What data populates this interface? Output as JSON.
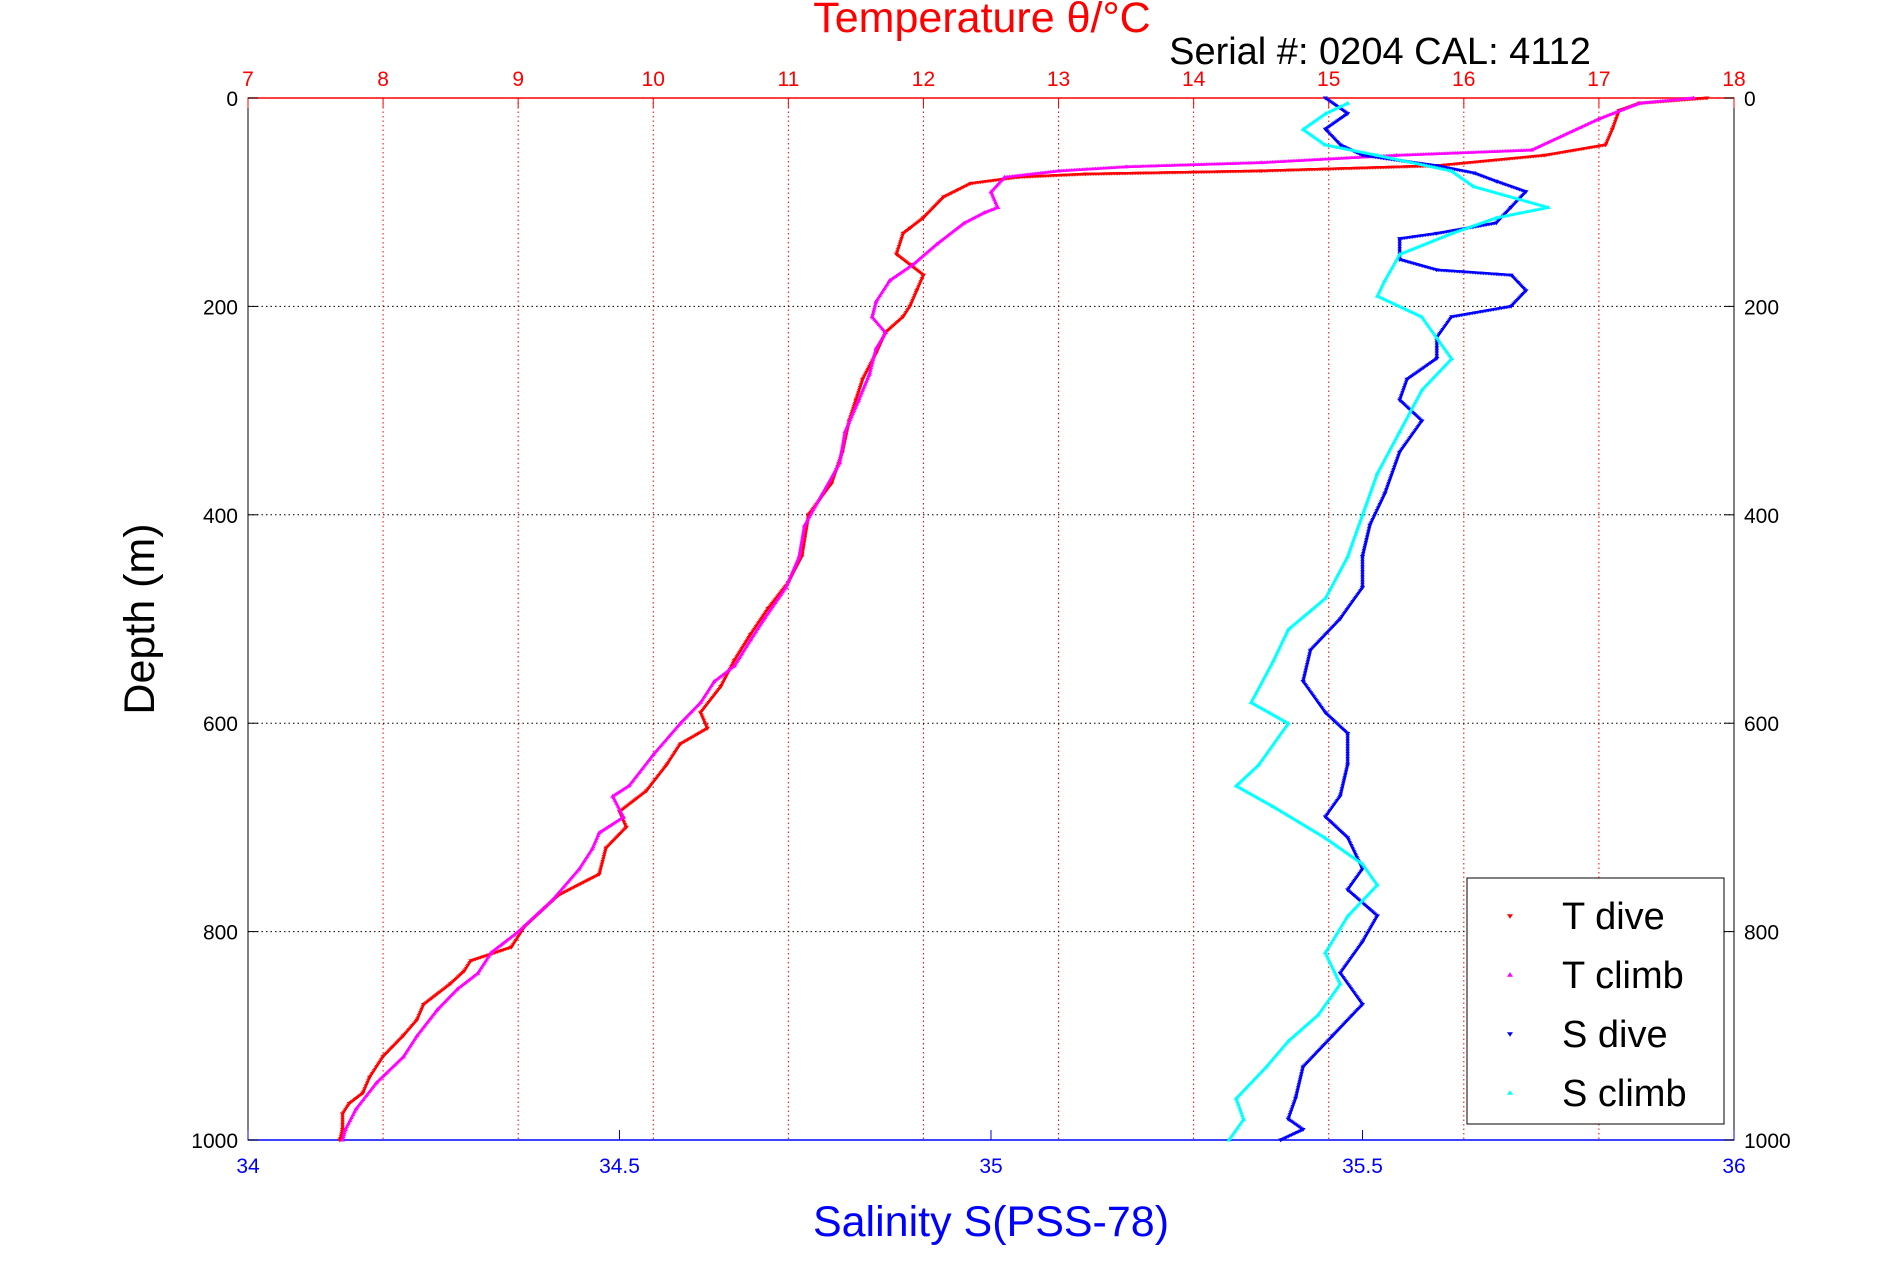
{
  "chart_data": {
    "type": "scatter",
    "title": "Temperature θ/°C",
    "subtitle": "Serial #: 0204  CAL: 4112",
    "ylabel": "Depth (m)",
    "xlabel": "Salinity S(PSS-78)",
    "y_axis": {
      "range": [
        0,
        1000
      ],
      "reversed": true,
      "ticks": [
        "0",
        "200",
        "400",
        "600",
        "800",
        "1000"
      ]
    },
    "temperature_axis": {
      "position": "top",
      "range": [
        7,
        18
      ],
      "ticks": [
        "7",
        "8",
        "9",
        "10",
        "11",
        "12",
        "13",
        "14",
        "15",
        "16",
        "17",
        "18"
      ],
      "color": "#ff0000"
    },
    "salinity_axis": {
      "position": "bottom",
      "range": [
        34,
        36
      ],
      "ticks": [
        "34",
        "34.5",
        "35",
        "35.5",
        "36"
      ],
      "color": "#0000ff"
    },
    "grid": true,
    "legend": {
      "placement": "bottom-right"
    },
    "series": [
      {
        "name": "T dive",
        "axis": "temperature",
        "color": "#ff0000",
        "marker": "triangle-down",
        "points": [
          [
            17.8,
            0
          ],
          [
            17.3,
            5
          ],
          [
            17.15,
            12
          ],
          [
            17.1,
            30
          ],
          [
            17.05,
            45
          ],
          [
            16.6,
            55
          ],
          [
            15.8,
            65
          ],
          [
            14.5,
            70
          ],
          [
            13.2,
            73
          ],
          [
            12.7,
            76
          ],
          [
            12.35,
            82
          ],
          [
            12.15,
            95
          ],
          [
            12.0,
            115
          ],
          [
            11.9,
            125
          ],
          [
            11.85,
            130
          ],
          [
            11.8,
            150
          ],
          [
            11.9,
            160
          ],
          [
            12.0,
            170
          ],
          [
            11.95,
            185
          ],
          [
            11.9,
            200
          ],
          [
            11.85,
            210
          ],
          [
            11.72,
            225
          ],
          [
            11.65,
            245
          ],
          [
            11.55,
            270
          ],
          [
            11.5,
            290
          ],
          [
            11.45,
            310
          ],
          [
            11.4,
            340
          ],
          [
            11.32,
            370
          ],
          [
            11.15,
            400
          ],
          [
            11.1,
            440
          ],
          [
            11.0,
            465
          ],
          [
            10.85,
            490
          ],
          [
            10.72,
            515
          ],
          [
            10.6,
            540
          ],
          [
            10.5,
            565
          ],
          [
            10.35,
            590
          ],
          [
            10.4,
            605
          ],
          [
            10.2,
            620
          ],
          [
            10.1,
            640
          ],
          [
            9.95,
            665
          ],
          [
            9.75,
            685
          ],
          [
            9.8,
            700
          ],
          [
            9.65,
            720
          ],
          [
            9.6,
            745
          ],
          [
            9.3,
            765
          ],
          [
            9.05,
            795
          ],
          [
            8.95,
            815
          ],
          [
            8.65,
            828
          ],
          [
            8.6,
            838
          ],
          [
            8.5,
            850
          ],
          [
            8.3,
            870
          ],
          [
            8.25,
            885
          ],
          [
            8.15,
            900
          ],
          [
            8.0,
            920
          ],
          [
            7.9,
            940
          ],
          [
            7.85,
            955
          ],
          [
            7.75,
            965
          ],
          [
            7.7,
            975
          ],
          [
            7.7,
            990
          ],
          [
            7.68,
            1000
          ]
        ]
      },
      {
        "name": "T climb",
        "axis": "temperature",
        "color": "#ff00ff",
        "marker": "triangle-up",
        "points": [
          [
            17.7,
            0
          ],
          [
            17.3,
            5
          ],
          [
            17.0,
            20
          ],
          [
            16.5,
            50
          ],
          [
            15.5,
            55
          ],
          [
            14.5,
            62
          ],
          [
            13.5,
            66
          ],
          [
            13.0,
            70
          ],
          [
            12.6,
            76
          ],
          [
            12.5,
            90
          ],
          [
            12.55,
            105
          ],
          [
            12.45,
            110
          ],
          [
            12.3,
            120
          ],
          [
            12.1,
            140
          ],
          [
            11.92,
            160
          ],
          [
            11.75,
            175
          ],
          [
            11.65,
            195
          ],
          [
            11.62,
            210
          ],
          [
            11.72,
            225
          ],
          [
            11.65,
            240
          ],
          [
            11.6,
            265
          ],
          [
            11.52,
            290
          ],
          [
            11.42,
            320
          ],
          [
            11.38,
            350
          ],
          [
            11.25,
            380
          ],
          [
            11.12,
            410
          ],
          [
            11.08,
            440
          ],
          [
            10.98,
            470
          ],
          [
            10.82,
            500
          ],
          [
            10.72,
            520
          ],
          [
            10.6,
            545
          ],
          [
            10.45,
            560
          ],
          [
            10.35,
            580
          ],
          [
            10.2,
            600
          ],
          [
            10.0,
            630
          ],
          [
            9.82,
            660
          ],
          [
            9.7,
            670
          ],
          [
            9.78,
            690
          ],
          [
            9.6,
            705
          ],
          [
            9.55,
            720
          ],
          [
            9.45,
            740
          ],
          [
            9.25,
            770
          ],
          [
            9.0,
            800
          ],
          [
            8.8,
            820
          ],
          [
            8.7,
            840
          ],
          [
            8.55,
            855
          ],
          [
            8.4,
            875
          ],
          [
            8.25,
            900
          ],
          [
            8.15,
            920
          ],
          [
            7.95,
            945
          ],
          [
            7.8,
            970
          ],
          [
            7.72,
            990
          ],
          [
            7.7,
            1000
          ]
        ]
      },
      {
        "name": "S dive",
        "axis": "salinity",
        "color": "#0000ff",
        "marker": "triangle-down",
        "points": [
          [
            35.45,
            0
          ],
          [
            35.48,
            15
          ],
          [
            35.45,
            30
          ],
          [
            35.47,
            45
          ],
          [
            35.5,
            55
          ],
          [
            35.6,
            65
          ],
          [
            35.65,
            72
          ],
          [
            35.68,
            80
          ],
          [
            35.72,
            90
          ],
          [
            35.7,
            105
          ],
          [
            35.68,
            120
          ],
          [
            35.6,
            130
          ],
          [
            35.55,
            135
          ],
          [
            35.55,
            155
          ],
          [
            35.6,
            165
          ],
          [
            35.7,
            170
          ],
          [
            35.72,
            185
          ],
          [
            35.7,
            200
          ],
          [
            35.62,
            210
          ],
          [
            35.6,
            230
          ],
          [
            35.6,
            250
          ],
          [
            35.56,
            270
          ],
          [
            35.55,
            290
          ],
          [
            35.58,
            310
          ],
          [
            35.55,
            340
          ],
          [
            35.53,
            380
          ],
          [
            35.51,
            410
          ],
          [
            35.5,
            440
          ],
          [
            35.5,
            470
          ],
          [
            35.47,
            500
          ],
          [
            35.43,
            530
          ],
          [
            35.42,
            560
          ],
          [
            35.45,
            590
          ],
          [
            35.48,
            610
          ],
          [
            35.48,
            640
          ],
          [
            35.47,
            670
          ],
          [
            35.45,
            690
          ],
          [
            35.48,
            710
          ],
          [
            35.5,
            740
          ],
          [
            35.48,
            760
          ],
          [
            35.52,
            785
          ],
          [
            35.5,
            810
          ],
          [
            35.47,
            840
          ],
          [
            35.5,
            870
          ],
          [
            35.46,
            900
          ],
          [
            35.42,
            930
          ],
          [
            35.41,
            960
          ],
          [
            35.4,
            980
          ],
          [
            35.42,
            990
          ],
          [
            35.39,
            1000
          ]
        ]
      },
      {
        "name": "S climb",
        "axis": "salinity",
        "color": "#00ffff",
        "marker": "triangle-up",
        "points": [
          [
            35.48,
            5
          ],
          [
            35.45,
            15
          ],
          [
            35.42,
            30
          ],
          [
            35.45,
            45
          ],
          [
            35.52,
            55
          ],
          [
            35.62,
            70
          ],
          [
            35.65,
            85
          ],
          [
            35.75,
            105
          ],
          [
            35.68,
            115
          ],
          [
            35.62,
            130
          ],
          [
            35.55,
            150
          ],
          [
            35.53,
            175
          ],
          [
            35.52,
            190
          ],
          [
            35.58,
            210
          ],
          [
            35.6,
            230
          ],
          [
            35.62,
            250
          ],
          [
            35.58,
            280
          ],
          [
            35.55,
            320
          ],
          [
            35.52,
            360
          ],
          [
            35.5,
            400
          ],
          [
            35.48,
            440
          ],
          [
            35.45,
            480
          ],
          [
            35.4,
            510
          ],
          [
            35.38,
            540
          ],
          [
            35.35,
            580
          ],
          [
            35.4,
            600
          ],
          [
            35.36,
            640
          ],
          [
            35.33,
            660
          ],
          [
            35.38,
            680
          ],
          [
            35.45,
            710
          ],
          [
            35.5,
            735
          ],
          [
            35.52,
            755
          ],
          [
            35.48,
            785
          ],
          [
            35.45,
            820
          ],
          [
            35.47,
            850
          ],
          [
            35.44,
            880
          ],
          [
            35.4,
            905
          ],
          [
            35.37,
            930
          ],
          [
            35.33,
            960
          ],
          [
            35.34,
            980
          ],
          [
            35.32,
            1000
          ]
        ]
      }
    ]
  }
}
